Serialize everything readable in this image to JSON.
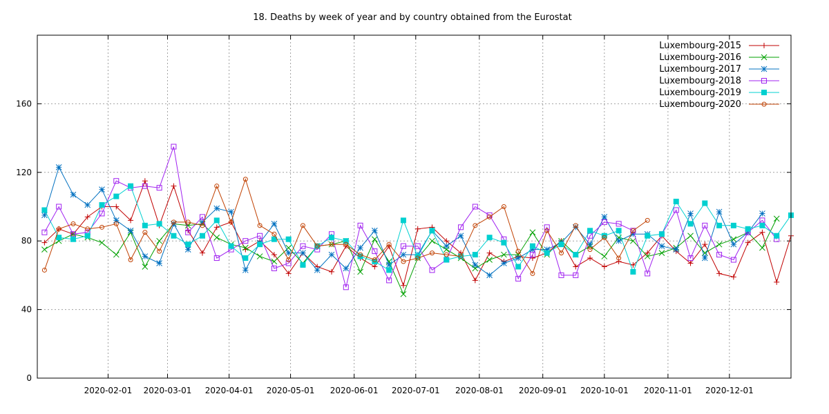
{
  "chart_data": {
    "type": "line",
    "title": "18. Deaths by week of year and by country obtained from the Eurostat",
    "xlabel": "",
    "ylabel": "",
    "ylim": [
      0,
      200
    ],
    "xlim": [
      0.5,
      53
    ],
    "yticks": [
      0,
      40,
      80,
      120,
      160
    ],
    "ytick_labels": [
      "0",
      "40",
      "80",
      "120",
      "160"
    ],
    "xticks": [
      5.43,
      9.57,
      13.86,
      18.14,
      22.57,
      26.86,
      31.29,
      35.71,
      40,
      44.43,
      48.71
    ],
    "xtick_labels": [
      "2020-02-01",
      "2020-03-01",
      "2020-04-01",
      "2020-05-01",
      "2020-06-01",
      "2020-07-01",
      "2020-08-01",
      "2020-09-01",
      "2020-10-01",
      "2020-11-01",
      "2020-12-01"
    ],
    "grid": true,
    "legend_position": "top-right",
    "series": [
      {
        "name": "Luxembourg-2015",
        "color": "#c00000",
        "marker": "plus",
        "start": 1,
        "values": [
          79,
          87,
          84,
          94,
          100,
          100,
          92,
          115,
          89,
          112,
          86,
          73,
          88,
          91,
          75,
          80,
          72,
          61,
          73,
          65,
          62,
          77,
          70,
          65,
          77,
          54,
          87,
          88,
          80,
          73,
          57,
          73,
          68,
          71,
          70,
          73,
          80,
          65,
          70,
          65,
          68,
          66,
          73,
          83,
          74,
          67,
          78,
          61,
          59,
          79,
          85,
          56,
          83
        ]
      },
      {
        "name": "Luxembourg-2016",
        "color": "#00a000",
        "marker": "x",
        "start": 1,
        "values": [
          75,
          80,
          84,
          82,
          79,
          72,
          85,
          65,
          80,
          90,
          89,
          90,
          82,
          78,
          76,
          71,
          68,
          76,
          67,
          77,
          78,
          80,
          62,
          81,
          68,
          49,
          70,
          80,
          75,
          70,
          64,
          69,
          72,
          72,
          85,
          72,
          80,
          72,
          77,
          71,
          82,
          80,
          71,
          73,
          76,
          83,
          73,
          78,
          81,
          85,
          76,
          93
        ]
      },
      {
        "name": "Luxembourg-2017",
        "color": "#0070c0",
        "marker": "star",
        "start": 1,
        "values": [
          95,
          123,
          107,
          101,
          110,
          92,
          86,
          71,
          67,
          90,
          75,
          91,
          99,
          97,
          63,
          79,
          90,
          73,
          73,
          63,
          72,
          64,
          76,
          86,
          66,
          72,
          72,
          86,
          77,
          83,
          66,
          60,
          67,
          70,
          75,
          75,
          79,
          88,
          78,
          94,
          80,
          84,
          84,
          77,
          75,
          96,
          70,
          97,
          78,
          85,
          96
        ]
      },
      {
        "name": "Luxembourg-2018",
        "color": "#a020f0",
        "marker": "square",
        "start": 1,
        "values": [
          85,
          100,
          84,
          85,
          96,
          115,
          111,
          112,
          111,
          135,
          85,
          94,
          70,
          75,
          80,
          83,
          64,
          67,
          77,
          75,
          84,
          53,
          89,
          74,
          57,
          77,
          77,
          63,
          69,
          88,
          100,
          95,
          81,
          58,
          72,
          88,
          60,
          60,
          83,
          91,
          90,
          86,
          61,
          84,
          98,
          70,
          89,
          72,
          69,
          85,
          92,
          81
        ]
      },
      {
        "name": "Luxembourg-2019",
        "color": "#00d0d0",
        "marker": "filled-square",
        "start": 1,
        "values": [
          98,
          82,
          81,
          83,
          101,
          106,
          112,
          89,
          90,
          83,
          78,
          83,
          92,
          77,
          70,
          78,
          81,
          81,
          66,
          77,
          82,
          80,
          71,
          68,
          63,
          92,
          71,
          86,
          69,
          71,
          72,
          82,
          79,
          65,
          77,
          73,
          78,
          72,
          86,
          83,
          86,
          62,
          83,
          84,
          103,
          90,
          102,
          89,
          89,
          87,
          89,
          83,
          95
        ]
      },
      {
        "name": "Luxembourg-2020",
        "color": "#c04000",
        "marker": "circle",
        "start": 1,
        "values": [
          63,
          87,
          90,
          87,
          88,
          90,
          69,
          85,
          74,
          91,
          91,
          89,
          112,
          91,
          116,
          89,
          84,
          69,
          89,
          77,
          78,
          78,
          72,
          69,
          78,
          68,
          70,
          73,
          72,
          71,
          89,
          94,
          100,
          74,
          61,
          86,
          73,
          89,
          75,
          82,
          70,
          86,
          92
        ]
      }
    ]
  }
}
